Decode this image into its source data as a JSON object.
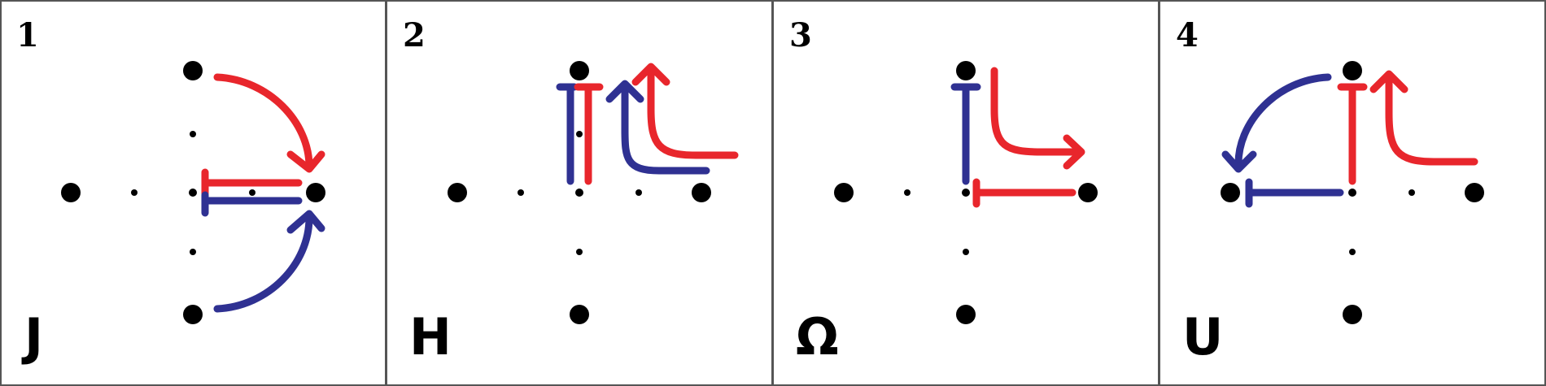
{
  "colors": {
    "red": "#e8262c",
    "blue": "#2f3192",
    "dot": "#000000",
    "border": "#555555"
  },
  "panels": [
    {
      "number": "1",
      "glyph": "J"
    },
    {
      "number": "2",
      "glyph": "H"
    },
    {
      "number": "3",
      "glyph": "Ω"
    },
    {
      "number": "4",
      "glyph": "U"
    }
  ]
}
